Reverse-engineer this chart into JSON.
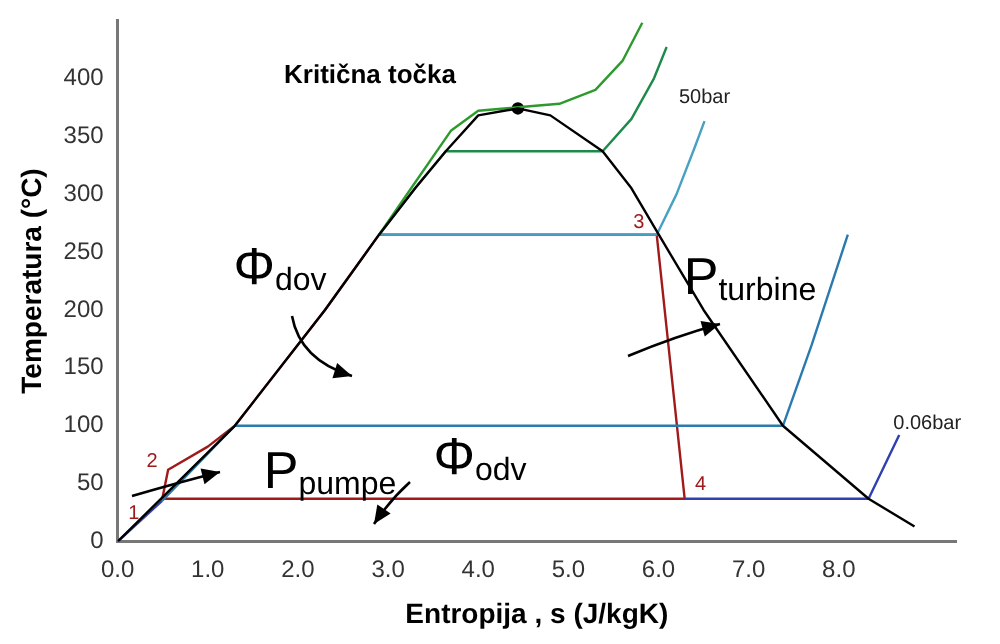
{
  "chart_data": {
    "type": "line",
    "xlabel": "Entropija , s (J/kgK)",
    "ylabel": "Temperatura (°C)",
    "xlim": [
      0,
      9.3
    ],
    "ylim": [
      0,
      450
    ],
    "xticks": [
      {
        "value": 0,
        "label": "0.0"
      },
      {
        "value": 1,
        "label": "1.0"
      },
      {
        "value": 2,
        "label": "2.0"
      },
      {
        "value": 3,
        "label": "3.0"
      },
      {
        "value": 4,
        "label": "4.0"
      },
      {
        "value": 5,
        "label": "5.0"
      },
      {
        "value": 6,
        "label": "6.0"
      },
      {
        "value": 7,
        "label": "7.0"
      },
      {
        "value": 8,
        "label": "8.0"
      }
    ],
    "yticks": [
      0,
      50,
      100,
      150,
      200,
      250,
      300,
      350,
      400
    ],
    "grid": false,
    "legend": false,
    "marker": "none",
    "line_style": "solid",
    "series": [
      {
        "color": "#000000",
        "x": [
          0,
          1.3,
          2.3,
          2.9,
          3.3,
          3.64,
          4.0,
          4.44,
          4.8,
          5.38,
          5.7,
          5.98,
          6.5,
          7.38,
          8.33,
          8.84
        ],
        "values": [
          0,
          100,
          200,
          265,
          305,
          337,
          368,
          374,
          368,
          337,
          305,
          268,
          200,
          100,
          37,
          13
        ]
      },
      {
        "color": "#2e9a2e",
        "x": [
          2.9,
          3.3,
          3.7,
          4.0,
          4.44,
          4.9,
          5.3,
          5.6,
          5.82
        ],
        "values": [
          265,
          310,
          355,
          372,
          375,
          378,
          390,
          415,
          448
        ]
      },
      {
        "color": "#1e8a4a",
        "x": [
          2.9,
          3.3,
          3.64,
          5.38,
          5.7,
          5.95,
          6.09
        ],
        "values": [
          265,
          305,
          337,
          337,
          365,
          400,
          427
        ]
      },
      {
        "color": "#4aa0c0",
        "x": [
          2.9,
          5.98,
          6.2,
          6.4,
          6.51
        ],
        "values": [
          265,
          265,
          300,
          340,
          363
        ]
      },
      {
        "color": "#2a7ab0",
        "x": [
          0.49,
          1.3,
          7.38,
          7.7,
          8.1
        ],
        "values": [
          35,
          100,
          100,
          170,
          265
        ]
      },
      {
        "color": "#3040b0",
        "x": [
          0,
          0.49
        ],
        "values": [
          0,
          35
        ]
      },
      {
        "color": "#3040b0",
        "x": [
          6.29,
          8.33,
          8.67
        ],
        "values": [
          37,
          37,
          92
        ]
      },
      {
        "color": "#a01a1a",
        "x": [
          0.49,
          0.56,
          1.0,
          1.3,
          2.3,
          2.9,
          5.98,
          6.29,
          0.49
        ],
        "values": [
          35,
          62,
          82,
          100,
          200,
          265,
          265,
          37,
          37
        ]
      },
      {
        "type": "scatter",
        "marker": "circle",
        "color": "#000000",
        "x": [
          4.44
        ],
        "values": [
          374
        ]
      }
    ],
    "annotations": [
      "Kritična točka",
      "Φ$_{dov}$",
      "P$_{turbine}$",
      "P$_{pumpe}$",
      "Φ$_{odv}$",
      {
        "text": "50bar",
        "x": 6.51,
        "y": 363
      },
      {
        "text": "0.06bar",
        "x": 8.67,
        "y": 92
      },
      {
        "text": "1",
        "x": 0.49,
        "y": 35
      },
      {
        "text": "2",
        "x": 0.56,
        "y": 62
      },
      {
        "text": "3",
        "x": 5.98,
        "y": 265
      },
      {
        "text": "4",
        "x": 6.29,
        "y": 37
      }
    ]
  }
}
